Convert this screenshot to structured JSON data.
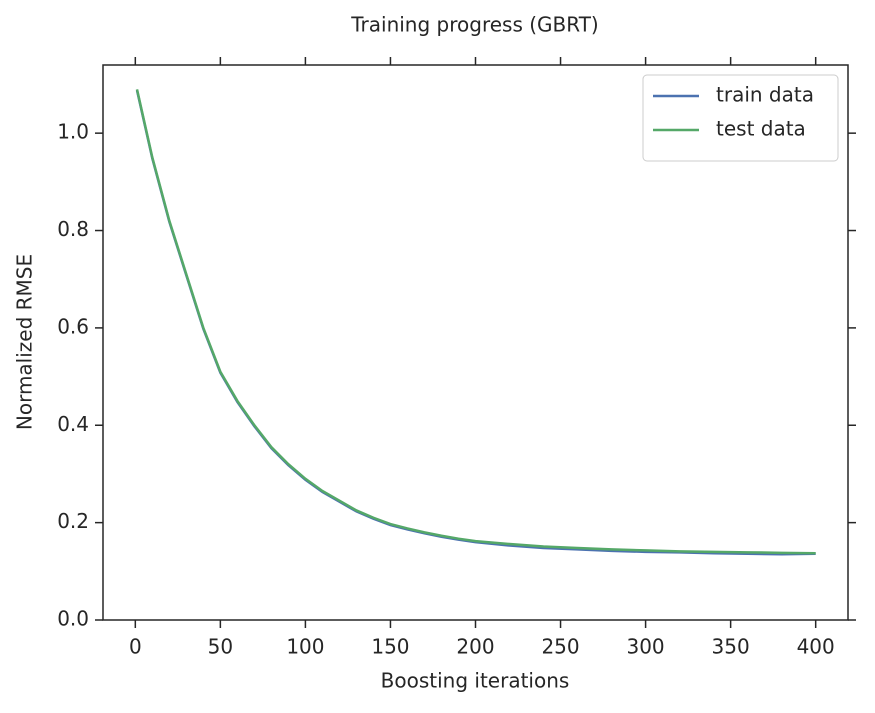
{
  "chart_data": {
    "type": "line",
    "title": "Training progress (GBRT)",
    "x_label": "Boosting iterations",
    "y_label": "Normalized RMSE",
    "x": [
      1,
      10,
      20,
      30,
      40,
      50,
      60,
      70,
      80,
      90,
      100,
      110,
      120,
      130,
      140,
      150,
      160,
      170,
      180,
      190,
      200,
      220,
      240,
      260,
      280,
      300,
      320,
      340,
      360,
      380,
      400
    ],
    "series": [
      {
        "name": "train data",
        "color": "#4c72b0",
        "values": [
          1.088,
          0.948,
          0.818,
          0.708,
          0.598,
          0.508,
          0.448,
          0.398,
          0.353,
          0.318,
          0.288,
          0.263,
          0.243,
          0.223,
          0.208,
          0.195,
          0.186,
          0.178,
          0.171,
          0.165,
          0.16,
          0.153,
          0.148,
          0.145,
          0.142,
          0.14,
          0.139,
          0.137,
          0.136,
          0.135,
          0.136
        ]
      },
      {
        "name": "test data",
        "color": "#55a868",
        "values": [
          1.09,
          0.95,
          0.82,
          0.71,
          0.6,
          0.51,
          0.45,
          0.4,
          0.355,
          0.32,
          0.29,
          0.265,
          0.245,
          0.225,
          0.21,
          0.197,
          0.188,
          0.18,
          0.173,
          0.167,
          0.162,
          0.156,
          0.151,
          0.148,
          0.145,
          0.143,
          0.141,
          0.14,
          0.139,
          0.138,
          0.137
        ]
      }
    ],
    "xlim": [
      -19,
      419
    ],
    "ylim": [
      0,
      1.14
    ],
    "xticks": [
      0,
      50,
      100,
      150,
      200,
      250,
      300,
      350,
      400
    ],
    "yticks": [
      {
        "value": 0,
        "label": "0.0"
      },
      0.2,
      0.4,
      0.6,
      0.8,
      {
        "value": 1,
        "label": "1.0"
      }
    ],
    "legend": "upper right"
  }
}
